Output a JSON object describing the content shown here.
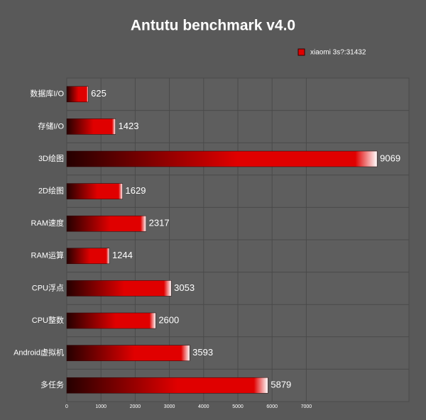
{
  "chart_data": {
    "type": "bar",
    "orientation": "horizontal",
    "title": "Antutu benchmark v4.0",
    "legend": "xiaomi 3s?:31432",
    "legend_position": "top-right",
    "categories": [
      "数据库I/O",
      "存储I/O",
      "3D绘图",
      "2D绘图",
      "RAM速度",
      "RAM运算",
      "CPU浮点",
      "CPU整数",
      "Android虚拟机",
      "多任务"
    ],
    "values": [
      625,
      1423,
      9069,
      1629,
      2317,
      1244,
      3053,
      2600,
      3593,
      5879
    ],
    "color": "#e00000",
    "xlim": [
      0,
      10000
    ],
    "xticks": [
      0,
      1000,
      2000,
      3000,
      4000,
      5000,
      6000,
      7000
    ],
    "grid": true
  }
}
